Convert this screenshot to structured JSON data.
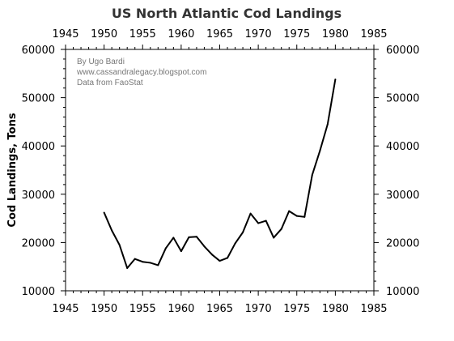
{
  "chart_data": {
    "type": "line",
    "title": "US North Atlantic Cod Landings",
    "xlabel": "",
    "ylabel": "Cod Landings, Tons",
    "xlim": [
      1945,
      1985
    ],
    "ylim": [
      10000,
      60000
    ],
    "x_ticks": [
      "1945",
      "1950",
      "1955",
      "1960",
      "1965",
      "1970",
      "1975",
      "1980",
      "1985"
    ],
    "y_ticks": [
      "10000",
      "20000",
      "30000",
      "40000",
      "50000",
      "60000"
    ],
    "grid": false,
    "annotations": [
      "By Ugo Bardi",
      "www.cassandralegacy.blogspot.com",
      "Data from FaoStat"
    ],
    "series": [
      {
        "x": [
          1950,
          1951,
          1952,
          1953,
          1954,
          1955,
          1956,
          1957,
          1958,
          1959,
          1960,
          1961,
          1962,
          1963,
          1964,
          1965,
          1966,
          1967,
          1968,
          1969,
          1970,
          1971,
          1972,
          1973,
          1974,
          1975,
          1976,
          1977,
          1978,
          1979,
          1980
        ],
        "y": [
          26200,
          22500,
          19500,
          14700,
          16600,
          16000,
          15800,
          15300,
          18800,
          21000,
          18200,
          21100,
          21200,
          19200,
          17500,
          16200,
          16800,
          19800,
          22100,
          26000,
          24000,
          24500,
          21000,
          22800,
          26500,
          25500,
          25300,
          34000,
          39000,
          44500,
          53800
        ]
      }
    ]
  },
  "colors": {
    "line": "#000000",
    "axis": "#000000",
    "title": "#333333",
    "note": "#777777"
  }
}
